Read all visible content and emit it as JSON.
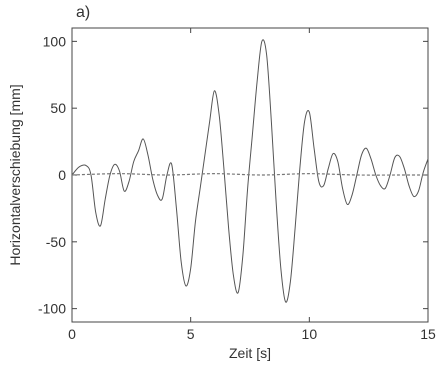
{
  "chart_data": {
    "type": "line",
    "panel_label": "a)",
    "xlabel": "Zeit [s]",
    "ylabel": "Horizontalverschiebung [mm]",
    "xlim": [
      0,
      15
    ],
    "ylim": [
      -110,
      110
    ],
    "x_ticks": [
      0,
      5,
      10,
      15
    ],
    "y_ticks": [
      -100,
      -50,
      0,
      50,
      100
    ],
    "grid": false,
    "series": [
      {
        "color": "#555555",
        "style": "solid",
        "x": [
          0,
          0.3,
          0.6,
          0.8,
          1.0,
          1.2,
          1.4,
          1.6,
          1.8,
          2.0,
          2.2,
          2.4,
          2.6,
          2.8,
          3.0,
          3.2,
          3.4,
          3.6,
          3.8,
          4.0,
          4.2,
          4.4,
          4.6,
          4.8,
          5.0,
          5.2,
          5.4,
          5.6,
          5.8,
          6.0,
          6.2,
          6.4,
          6.6,
          6.8,
          7.0,
          7.2,
          7.4,
          7.6,
          7.8,
          8.0,
          8.2,
          8.4,
          8.6,
          8.8,
          9.0,
          9.2,
          9.4,
          9.6,
          9.8,
          10.0,
          10.2,
          10.4,
          10.6,
          10.8,
          11.0,
          11.2,
          11.4,
          11.6,
          11.8,
          12.0,
          12.2,
          12.4,
          12.6,
          12.8,
          13.0,
          13.2,
          13.4,
          13.6,
          13.8,
          14.0,
          14.2,
          14.4,
          14.6,
          14.8,
          15.0
        ],
        "y": [
          0,
          6,
          7,
          0,
          -28,
          -38,
          -18,
          0,
          8,
          3,
          -12,
          -5,
          10,
          18,
          27,
          15,
          -3,
          -15,
          -18,
          0,
          8,
          -25,
          -65,
          -83,
          -70,
          -35,
          -10,
          15,
          40,
          63,
          45,
          5,
          -40,
          -75,
          -88,
          -60,
          -10,
          30,
          70,
          100,
          90,
          40,
          -20,
          -70,
          -95,
          -80,
          -40,
          5,
          40,
          47,
          20,
          -5,
          -8,
          5,
          16,
          10,
          -10,
          -22,
          -15,
          0,
          15,
          20,
          12,
          0,
          -8,
          -10,
          0,
          13,
          14,
          5,
          -8,
          -16,
          -12,
          2,
          12
        ]
      },
      {
        "color": "#777777",
        "style": "dashed",
        "x": [
          0,
          2,
          4,
          6,
          8,
          10,
          12,
          14,
          15
        ],
        "y": [
          0,
          1,
          0,
          1,
          0,
          1,
          0,
          0,
          0
        ]
      }
    ]
  }
}
